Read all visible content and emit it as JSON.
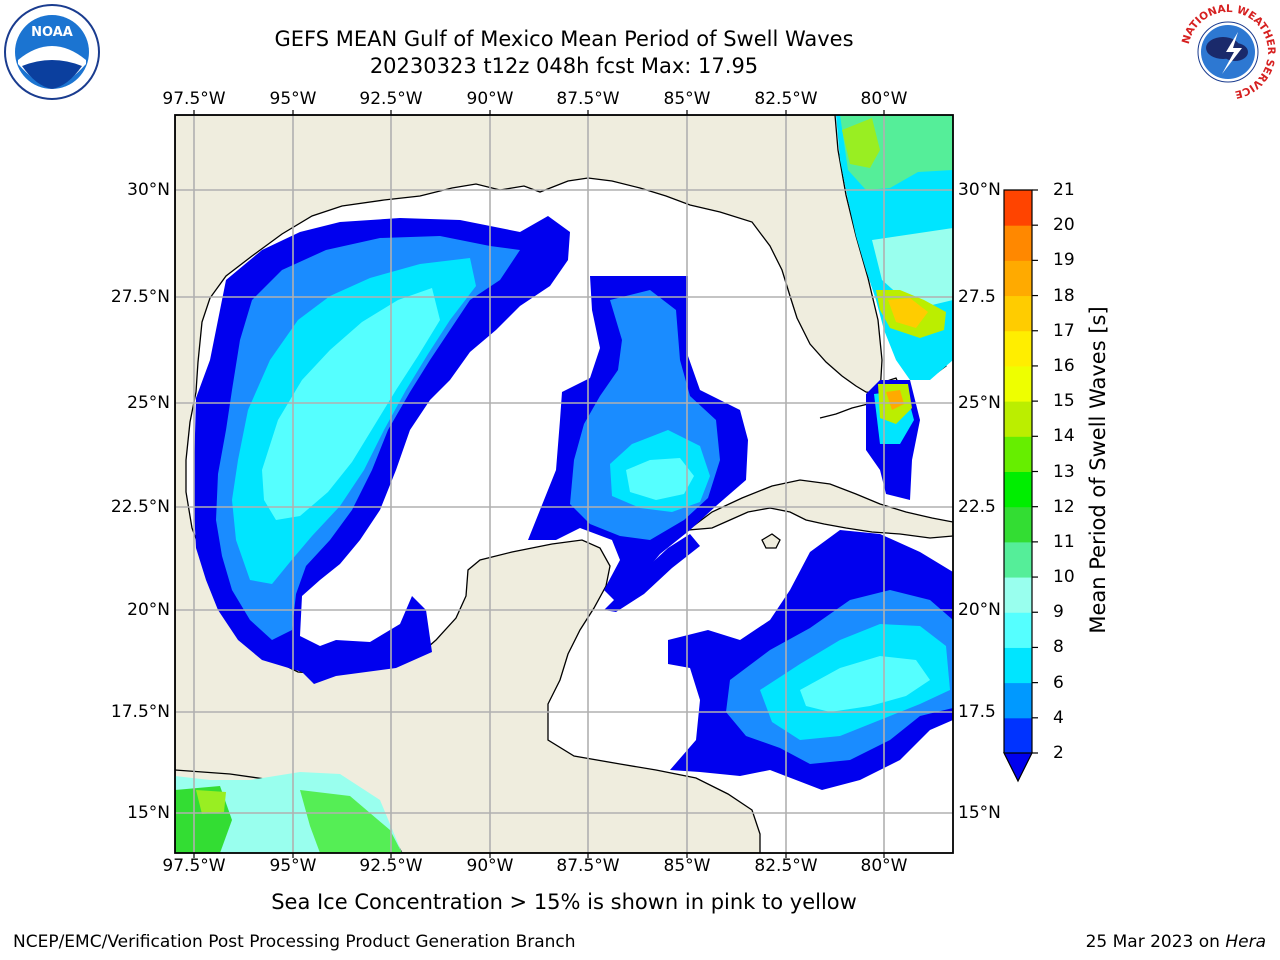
{
  "title": {
    "line1": "GEFS MEAN Gulf of Mexico Mean Period of Swell Waves",
    "line2": "20230323 t12z 048h fcst   Max: 17.95"
  },
  "lon_labels": [
    "97.5°W",
    "95°W",
    "92.5°W",
    "90°W",
    "87.5°W",
    "85°W",
    "82.5°W",
    "80°W"
  ],
  "lat_labels_left": [
    "30°N",
    "27.5°N",
    "25°N",
    "22.5°N",
    "20°N",
    "17.5°N",
    "15°N"
  ],
  "lat_labels_right": [
    "30°N",
    "27.5",
    "25°N",
    "22.5",
    "20°N",
    "17.5",
    "15°N"
  ],
  "colorbar": {
    "label": "Mean Period of Swell Waves [s]",
    "ticks": [
      "2",
      "4",
      "6",
      "8",
      "9",
      "10",
      "11",
      "12",
      "13",
      "14",
      "15",
      "16",
      "17",
      "18",
      "19",
      "20",
      "21"
    ],
    "colors": [
      "#0033ff",
      "#0099ff",
      "#00e5ff",
      "#55ffff",
      "#99ffee",
      "#55ee99",
      "#33dd33",
      "#00ee00",
      "#66ee00",
      "#bbee00",
      "#eeff00",
      "#ffee00",
      "#ffcc00",
      "#ffaa00",
      "#ff8800",
      "#ff4400",
      "#ff0000"
    ],
    "extend_color": "#0000ee"
  },
  "note": "Sea Ice Concentration > 15% is shown in pink to yellow",
  "credit_left": "NCEP/EMC/Verification Post Processing Product Generation Branch",
  "credit_date": "25 Mar 2023 on",
  "credit_host": "Hera",
  "logos": {
    "noaa_text": "NOAA",
    "nws_text": "NATIONAL WEATHER SERVICE"
  },
  "colors": {
    "land": "#efedde",
    "ocean_empty": "#ffffff",
    "grid": "#b0b0b0",
    "coast": "#000000"
  }
}
